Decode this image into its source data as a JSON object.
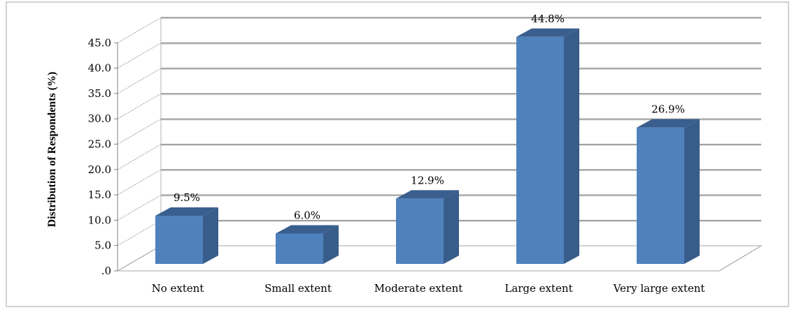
{
  "chart_data": {
    "type": "bar",
    "title": "",
    "xlabel": "",
    "ylabel": "Distribution of Respondents (%)",
    "ylim": [
      0,
      45
    ],
    "ytick_step": 5,
    "ytick_labels": [
      ".0",
      "5.0",
      "10.0",
      "15.0",
      "20.0",
      "25.0",
      "30.0",
      "35.0",
      "40.0",
      "45.0"
    ],
    "categories": [
      "No extent",
      "Small extent",
      "Moderate extent",
      "Large extent",
      "Very large extent"
    ],
    "values": [
      9.5,
      6.0,
      12.9,
      44.8,
      26.9
    ],
    "data_labels": [
      "9.5%",
      "6.0%",
      "12.9%",
      "44.8%",
      "26.9%"
    ],
    "grid": true,
    "legend": "none",
    "colors": {
      "bar_front": "#4f81bd",
      "bar_side": "#385d8a",
      "bar_top": "#3a5f8f",
      "gridline": "#8c8c8c",
      "frame": "#a6a6a6"
    }
  }
}
